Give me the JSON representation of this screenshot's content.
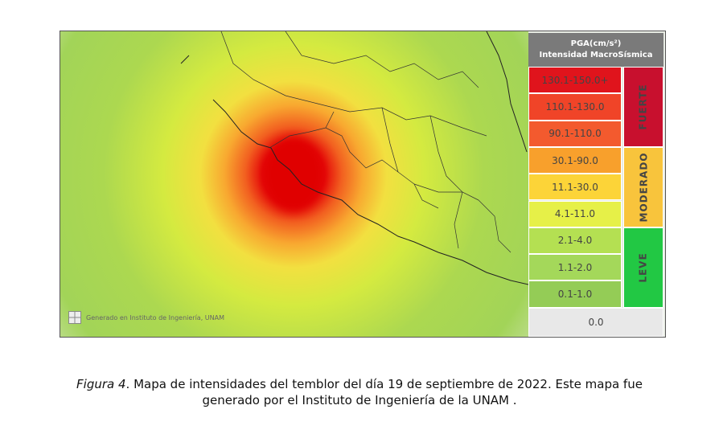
{
  "legend": {
    "title": [
      "PGA(cm/s²)",
      "Intensidad MacroSísmica"
    ],
    "rows": [
      {
        "label": "130.1-150.0+",
        "color": "#e0141c"
      },
      {
        "label": "110.1-130.0",
        "color": "#f04428"
      },
      {
        "label": "90.1-110.0",
        "color": "#f35a2e"
      },
      {
        "label": "30.1-90.0",
        "color": "#f8a02c"
      },
      {
        "label": "11.1-30.0",
        "color": "#fcd438"
      },
      {
        "label": "4.1-11.0",
        "color": "#e6f048"
      },
      {
        "label": "2.1-4.0",
        "color": "#b4e052"
      },
      {
        "label": "1.1-2.0",
        "color": "#a4d85a"
      },
      {
        "label": "0.1-1.0",
        "color": "#94cc56"
      },
      {
        "label": "0.0",
        "color": "#e8e8e8"
      }
    ],
    "groups": [
      {
        "label": "FUERTE",
        "color": "#c8102e",
        "rows": 3
      },
      {
        "label": "MODERADO",
        "color": "#f8c43c",
        "rows": 3
      },
      {
        "label": "LEVE",
        "color": "#22c844",
        "rows": 3
      }
    ]
  },
  "watermark": "Generado en Instituto de Ingeniería, UNAM",
  "caption": {
    "label": "Figura 4",
    "text": ". Mapa de intensidades del temblor del día 19 de septiembre de 2022. Este mapa fue generado por el Instituto de Ingeniería de la UNAM ."
  }
}
